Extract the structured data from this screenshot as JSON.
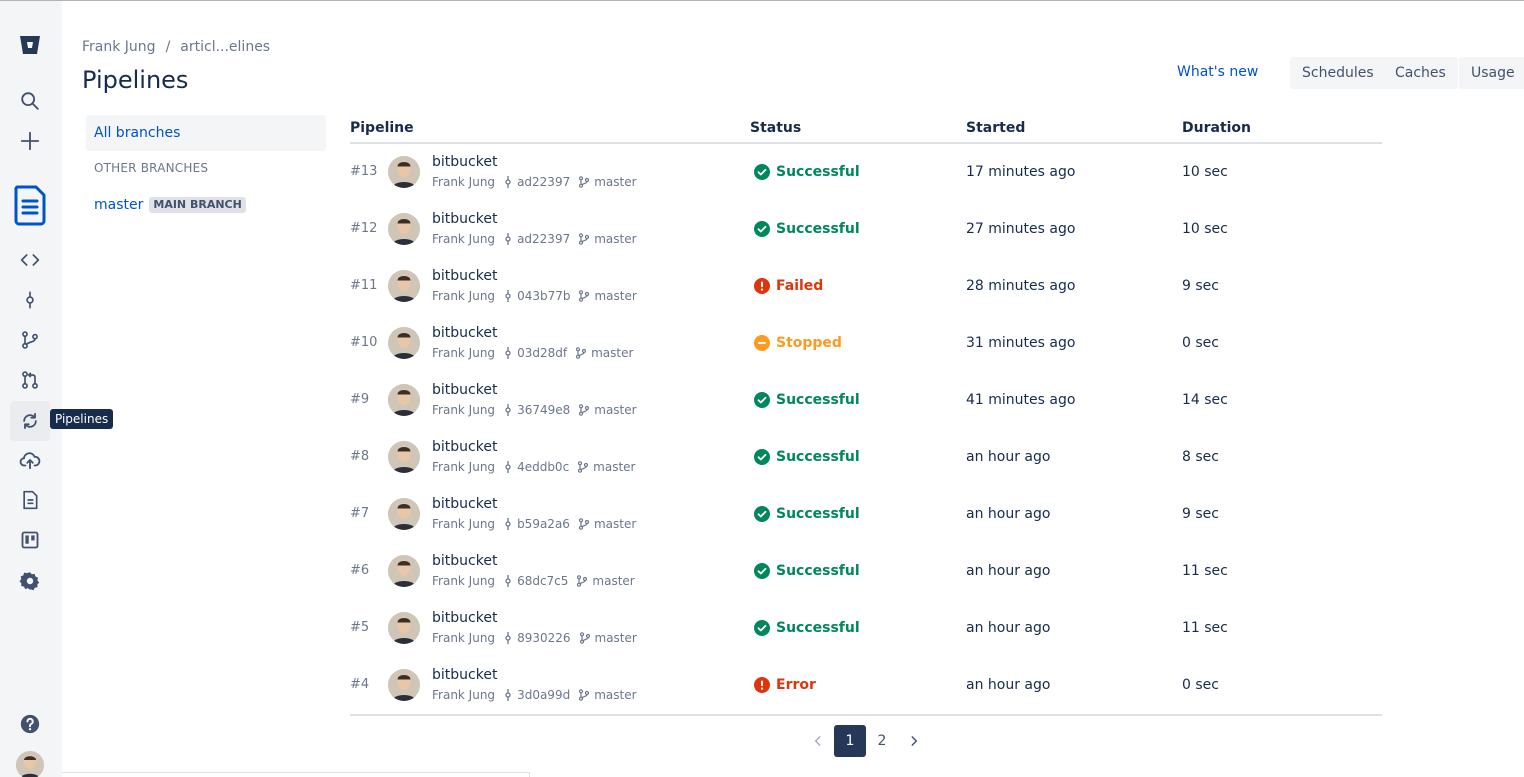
{
  "rail": {
    "tooltip": "Pipelines"
  },
  "breadcrumb": {
    "owner": "Frank Jung",
    "separator": "/",
    "repo": "articl...elines"
  },
  "page": {
    "title": "Pipelines",
    "whats_new": "What's new",
    "buttons": [
      "Schedules",
      "Caches",
      "Usage"
    ]
  },
  "branches": {
    "all": "All branches",
    "other_heading": "OTHER BRANCHES",
    "items": [
      {
        "name": "master",
        "badge": "MAIN BRANCH"
      }
    ]
  },
  "table": {
    "headers": {
      "pipeline": "Pipeline",
      "status": "Status",
      "started": "Started",
      "duration": "Duration"
    },
    "rows": [
      {
        "num": "#13",
        "title": "bitbucket",
        "author": "Frank Jung",
        "commit": "ad22397",
        "branch": "master",
        "status": "Successful",
        "state": "success",
        "started": "17 minutes ago",
        "duration": "10 sec"
      },
      {
        "num": "#12",
        "title": "bitbucket",
        "author": "Frank Jung",
        "commit": "ad22397",
        "branch": "master",
        "status": "Successful",
        "state": "success",
        "started": "27 minutes ago",
        "duration": "10 sec"
      },
      {
        "num": "#11",
        "title": "bitbucket",
        "author": "Frank Jung",
        "commit": "043b77b",
        "branch": "master",
        "status": "Failed",
        "state": "failed",
        "started": "28 minutes ago",
        "duration": "9 sec"
      },
      {
        "num": "#10",
        "title": "bitbucket",
        "author": "Frank Jung",
        "commit": "03d28df",
        "branch": "master",
        "status": "Stopped",
        "state": "stopped",
        "started": "31 minutes ago",
        "duration": "0 sec"
      },
      {
        "num": "#9",
        "title": "bitbucket",
        "author": "Frank Jung",
        "commit": "36749e8",
        "branch": "master",
        "status": "Successful",
        "state": "success",
        "started": "41 minutes ago",
        "duration": "14 sec"
      },
      {
        "num": "#8",
        "title": "bitbucket",
        "author": "Frank Jung",
        "commit": "4eddb0c",
        "branch": "master",
        "status": "Successful",
        "state": "success",
        "started": "an hour ago",
        "duration": "8 sec"
      },
      {
        "num": "#7",
        "title": "bitbucket",
        "author": "Frank Jung",
        "commit": "b59a2a6",
        "branch": "master",
        "status": "Successful",
        "state": "success",
        "started": "an hour ago",
        "duration": "9 sec"
      },
      {
        "num": "#6",
        "title": "bitbucket",
        "author": "Frank Jung",
        "commit": "68dc7c5",
        "branch": "master",
        "status": "Successful",
        "state": "success",
        "started": "an hour ago",
        "duration": "11 sec"
      },
      {
        "num": "#5",
        "title": "bitbucket",
        "author": "Frank Jung",
        "commit": "8930226",
        "branch": "master",
        "status": "Successful",
        "state": "success",
        "started": "an hour ago",
        "duration": "11 sec"
      },
      {
        "num": "#4",
        "title": "bitbucket",
        "author": "Frank Jung",
        "commit": "3d0a99d",
        "branch": "master",
        "status": "Error",
        "state": "failed",
        "started": "an hour ago",
        "duration": "0 sec"
      }
    ]
  },
  "pagination": {
    "pages": [
      "1",
      "2"
    ],
    "current": "1"
  },
  "colors": {
    "success": "#00875a",
    "failed": "#de350b",
    "stopped": "#ff991f",
    "link": "#0052cc",
    "brand": "#0052cc"
  },
  "icons": {
    "rail": [
      "bitbucket-logo-icon",
      "search-icon",
      "create-icon",
      "repository-icon",
      "source-icon",
      "commits-icon",
      "branches-icon",
      "pull-requests-icon",
      "pipelines-icon",
      "deployments-icon",
      "jira-issues-icon",
      "boards-icon",
      "settings-icon",
      "help-icon"
    ],
    "status": {
      "success": "check-circle-icon",
      "failed": "error-circle-icon",
      "stopped": "stopped-circle-icon"
    }
  }
}
